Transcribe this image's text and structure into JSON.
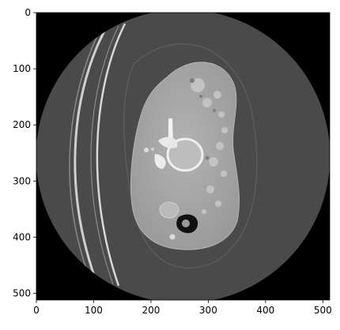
{
  "image": {
    "subject": "axial CT slice",
    "colors": {
      "background": "#000000",
      "field_of_view": "#4a4a4a",
      "soft_tissue": "#a5a5a5",
      "bone": "#f2f2f2",
      "gas": "#111111"
    }
  },
  "axes": {
    "x_ticks": [
      "0",
      "100",
      "200",
      "300",
      "400",
      "500"
    ],
    "y_ticks": [
      "0",
      "100",
      "200",
      "300",
      "400",
      "500"
    ],
    "x_range": [
      0,
      512
    ],
    "y_range": [
      512,
      0
    ]
  }
}
